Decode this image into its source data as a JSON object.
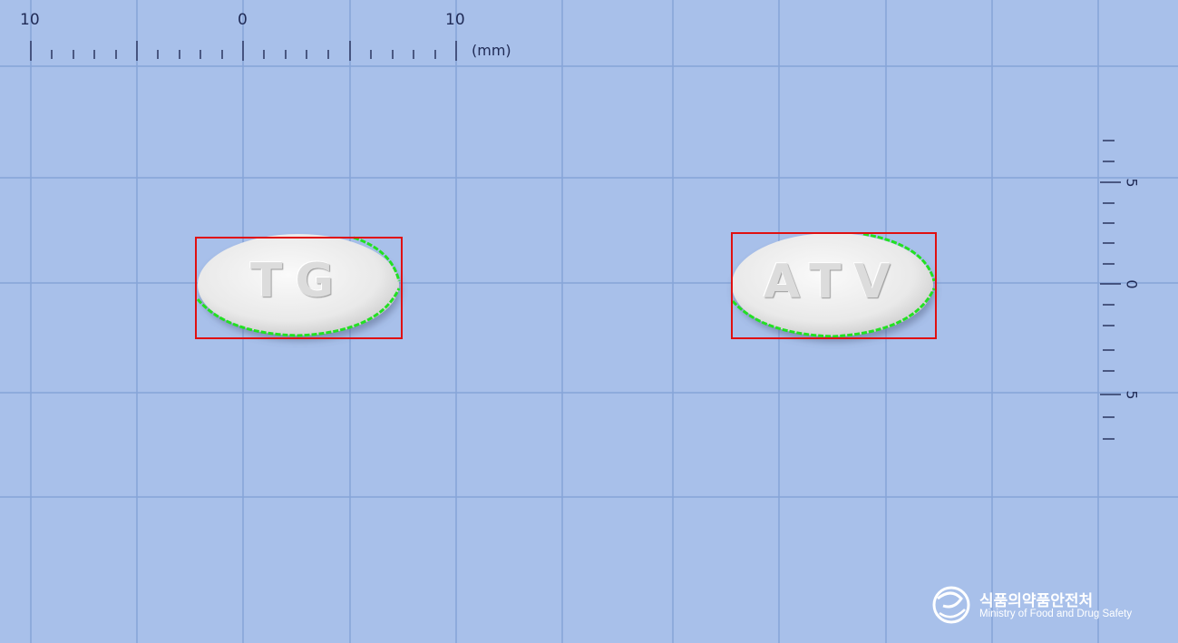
{
  "ruler": {
    "top_labels": [
      "10",
      "0",
      "10"
    ],
    "unit": "(mm)",
    "side_labels": [
      "5",
      "0",
      "5"
    ]
  },
  "pills": [
    {
      "imprint": "TG"
    },
    {
      "imprint": "ATV"
    }
  ],
  "logo": {
    "korean": "식품의약품안전처",
    "english": "Ministry of Food and Drug Safety"
  },
  "colors": {
    "background": "#a8c0ea",
    "grid": "#7f9fd6",
    "ruler_ink": "#1f2a55",
    "bounding_box": "#e01010",
    "contour": "#22e022",
    "pill": "#f2f2f2"
  }
}
